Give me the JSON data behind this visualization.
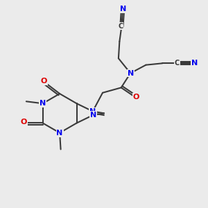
{
  "bg_color": "#ebebeb",
  "bond_color": "#3a3a3a",
  "N_color": "#0000ee",
  "O_color": "#dd0000",
  "C_color": "#3a3a3a",
  "bond_width": 1.5,
  "font_size": 8,
  "figsize": [
    3.0,
    3.0
  ],
  "dpi": 100,
  "xlim": [
    0,
    10
  ],
  "ylim": [
    0,
    10
  ]
}
